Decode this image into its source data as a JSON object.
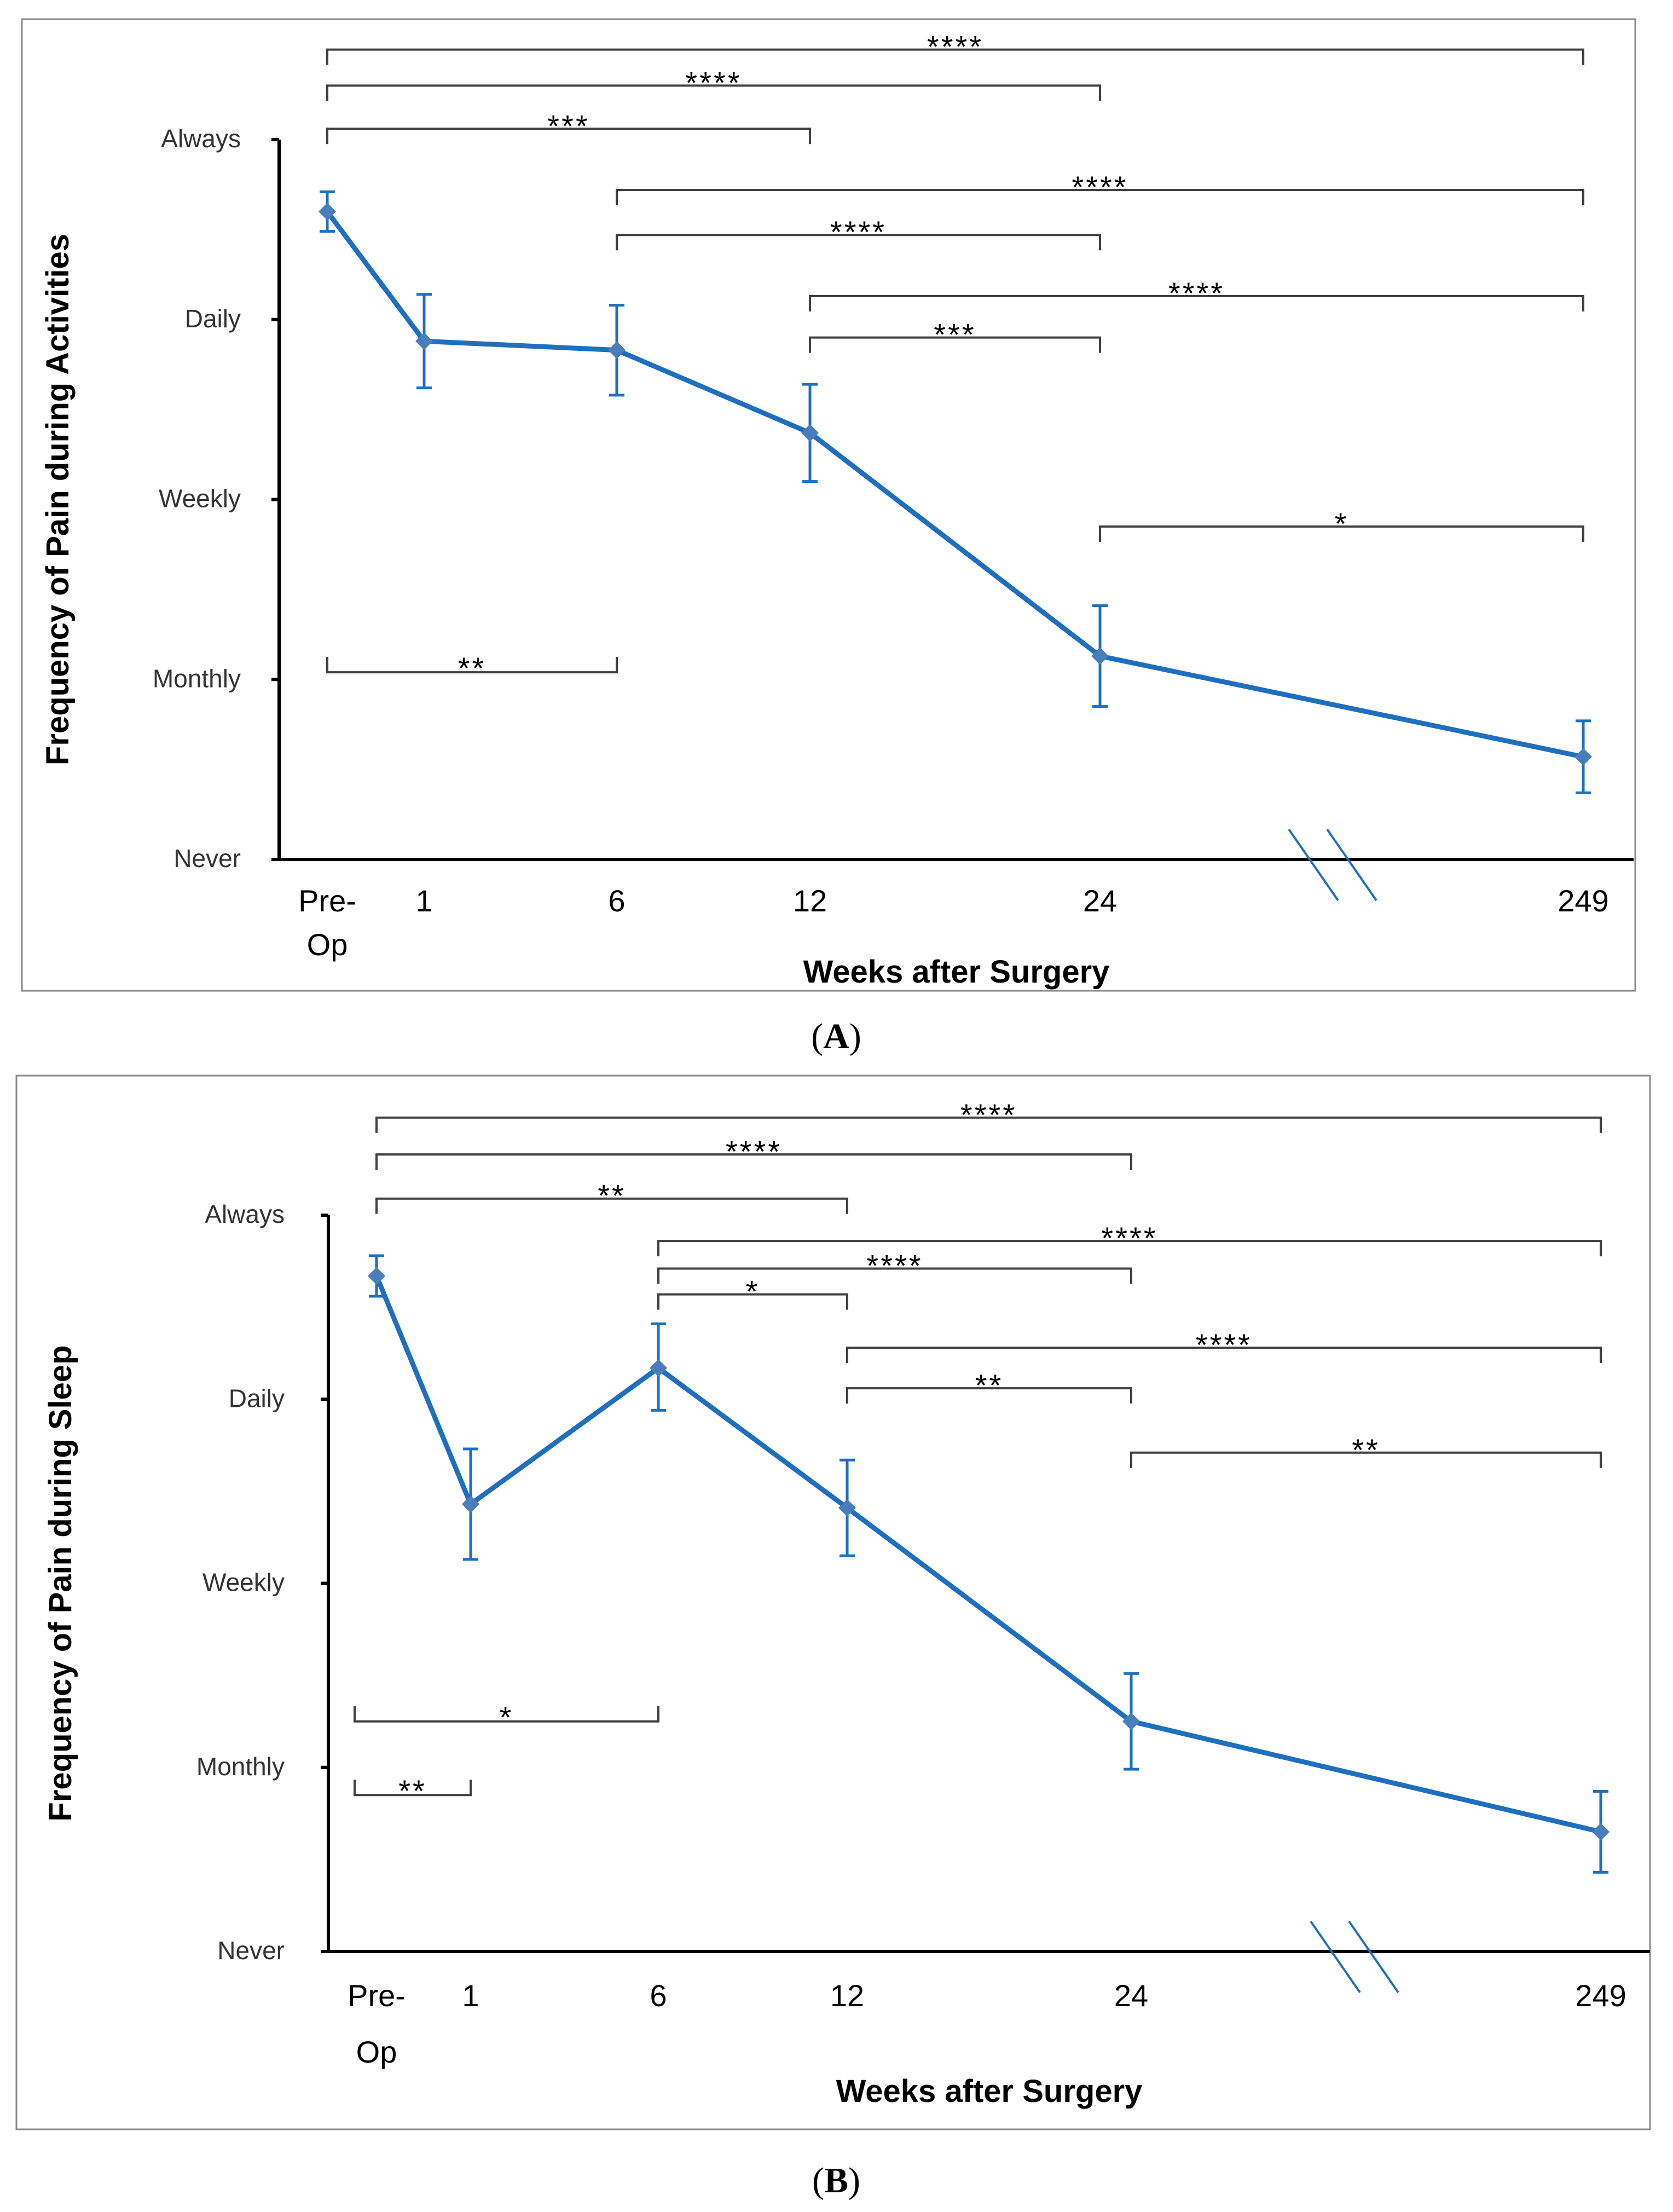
{
  "chart_data": [
    {
      "panel_label": "A",
      "type": "line",
      "xlabel": "Weeks after Surgery",
      "ylabel": "Frequency of Pain during Activities",
      "x_categories": [
        [
          "Pre-",
          "Op"
        ],
        [
          "1"
        ],
        [
          "6"
        ],
        [
          "12"
        ],
        [
          "24"
        ],
        [
          "249"
        ]
      ],
      "y_levels": [
        "Never",
        "Monthly",
        "Weekly",
        "Daily",
        "Always"
      ],
      "ylim": [
        0,
        4
      ],
      "axis_break": "between 24 and 249",
      "series": [
        {
          "name": "Frequency of Pain during Activities",
          "color": "#1f6fbf",
          "marker_color": "#4a7ebb",
          "values": [
            3.6,
            2.88,
            2.83,
            2.37,
            1.13,
            0.57
          ],
          "err_lo": [
            3.49,
            2.62,
            2.58,
            2.1,
            0.85,
            0.37
          ],
          "err_hi": [
            3.71,
            3.14,
            3.08,
            2.64,
            1.41,
            0.77
          ]
        }
      ],
      "significance": [
        {
          "from": 0,
          "to": 5,
          "label": "****",
          "y": 4.5,
          "dir": "down"
        },
        {
          "from": 0,
          "to": 4,
          "label": "****",
          "y": 4.3,
          "dir": "down"
        },
        {
          "from": 0,
          "to": 3,
          "label": "***",
          "y": 4.06,
          "dir": "down"
        },
        {
          "from": 2,
          "to": 5,
          "label": "****",
          "y": 3.72,
          "dir": "down"
        },
        {
          "from": 2,
          "to": 4,
          "label": "****",
          "y": 3.47,
          "dir": "down"
        },
        {
          "from": 3,
          "to": 5,
          "label": "****",
          "y": 3.13,
          "dir": "down"
        },
        {
          "from": 3,
          "to": 4,
          "label": "***",
          "y": 2.9,
          "dir": "down"
        },
        {
          "from": 4,
          "to": 5,
          "label": "*",
          "y": 1.85,
          "dir": "down"
        },
        {
          "from": 0,
          "to": 2,
          "label": "**",
          "y": 1.04,
          "dir": "up"
        }
      ]
    },
    {
      "panel_label": "B",
      "type": "line",
      "xlabel": "Weeks after Surgery",
      "ylabel": "Frequency of Pain during Sleep",
      "x_categories": [
        [
          "Pre-",
          "Op"
        ],
        [
          "1"
        ],
        [
          "6"
        ],
        [
          "12"
        ],
        [
          "24"
        ],
        [
          "249"
        ]
      ],
      "y_levels": [
        "Never",
        "Monthly",
        "Weekly",
        "Daily",
        "Always"
      ],
      "ylim": [
        0,
        4
      ],
      "axis_break": "between 24 and 249",
      "series": [
        {
          "name": "Frequency of Pain during Sleep",
          "color": "#1f6fbf",
          "marker_color": "#4a7ebb",
          "values": [
            3.67,
            2.43,
            3.17,
            2.41,
            1.25,
            0.65
          ],
          "err_lo": [
            3.56,
            2.13,
            2.94,
            2.15,
            0.99,
            0.43
          ],
          "err_hi": [
            3.78,
            2.73,
            3.41,
            2.67,
            1.51,
            0.87
          ]
        }
      ],
      "significance": [
        {
          "from": 0,
          "to": 5,
          "label": "****",
          "y": 4.53,
          "dir": "down"
        },
        {
          "from": 0,
          "to": 4,
          "label": "****",
          "y": 4.33,
          "dir": "down"
        },
        {
          "from": 0,
          "to": 3,
          "label": "**",
          "y": 4.09,
          "dir": "down"
        },
        {
          "from": 2,
          "to": 5,
          "label": "****",
          "y": 3.86,
          "dir": "down"
        },
        {
          "from": 2,
          "to": 4,
          "label": "****",
          "y": 3.71,
          "dir": "down"
        },
        {
          "from": 2,
          "to": 3,
          "label": "*",
          "y": 3.57,
          "dir": "down"
        },
        {
          "from": 3,
          "to": 5,
          "label": "****",
          "y": 3.28,
          "dir": "down"
        },
        {
          "from": 3,
          "to": 4,
          "label": "**",
          "y": 3.06,
          "dir": "down"
        },
        {
          "from": 4,
          "to": 5,
          "label": "**",
          "y": 2.71,
          "dir": "down"
        },
        {
          "from": 0,
          "to": 2,
          "label": "*",
          "y": 1.25,
          "dir": "up",
          "inset": "left"
        },
        {
          "from": 0,
          "to": 1,
          "label": "**",
          "y": 0.85,
          "dir": "up",
          "inset": "left"
        }
      ]
    }
  ]
}
